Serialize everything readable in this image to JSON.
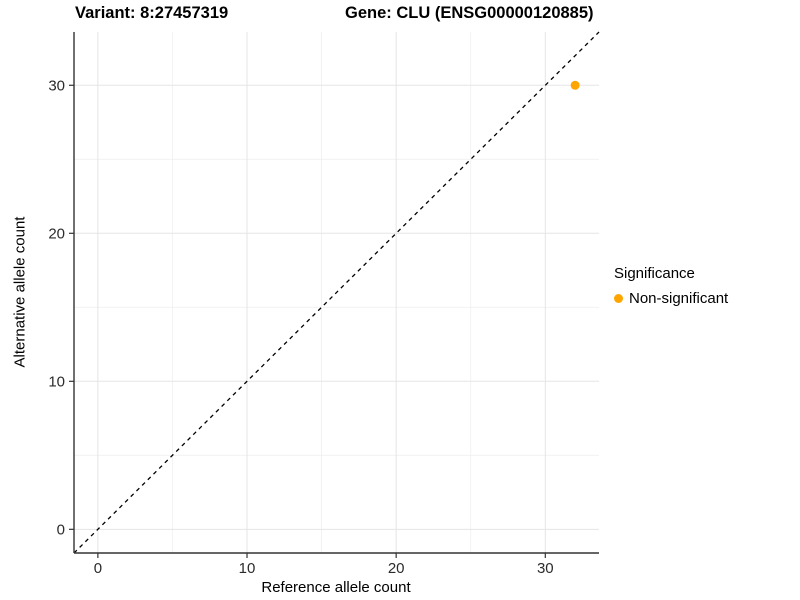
{
  "titles": {
    "variant": "Variant: 8:27457319",
    "gene": "Gene: CLU (ENSG00000120885)"
  },
  "axes": {
    "x_label": "Reference allele count",
    "y_label": "Alternative allele count"
  },
  "legend": {
    "title": "Significance",
    "items": [
      {
        "label": "Non-significant",
        "color": "#FFA500"
      }
    ]
  },
  "chart_data": {
    "type": "scatter",
    "title": "Variant: 8:27457319  |  Gene: CLU (ENSG00000120885)",
    "xlabel": "Reference allele count",
    "ylabel": "Alternative allele count",
    "xlim": [
      -1.6,
      33.6
    ],
    "ylim": [
      -1.6,
      33.6
    ],
    "x_ticks": [
      0,
      10,
      20,
      30
    ],
    "y_ticks": [
      0,
      10,
      20,
      30
    ],
    "x_minor_ticks": [
      5,
      15,
      25
    ],
    "y_minor_ticks": [
      5,
      15,
      25
    ],
    "grid": {
      "major_color": "#e5e5e5",
      "minor_color": "#f0f0f0"
    },
    "axis_color": "#333333",
    "series": [
      {
        "name": "Non-significant",
        "color": "#FFA500",
        "marker_radius": 4.5,
        "points": [
          [
            32,
            30
          ]
        ]
      }
    ],
    "identity_line": {
      "slope": 1,
      "intercept": 0,
      "style": "dashed",
      "color": "#000000"
    },
    "legend_position": "right"
  }
}
